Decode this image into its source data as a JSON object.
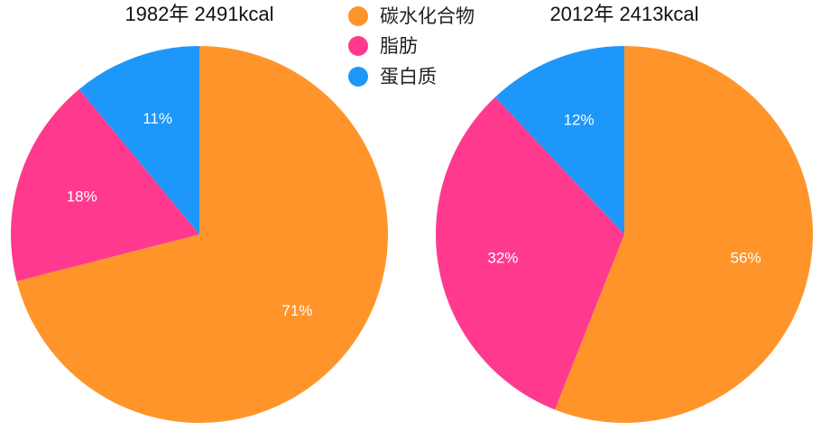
{
  "legend": {
    "items": [
      {
        "label": "碳水化合物",
        "color": "#FF952A"
      },
      {
        "label": "脂肪",
        "color": "#FF3A8E"
      },
      {
        "label": "蛋白质",
        "color": "#1E97FA"
      }
    ]
  },
  "chart_data": [
    {
      "type": "pie",
      "title": "1982年 2491kcal",
      "slices": [
        {
          "label": "碳水化合物",
          "value": 71,
          "display": "71%",
          "color": "#FF952A"
        },
        {
          "label": "脂肪",
          "value": 18,
          "display": "18%",
          "color": "#FF3A8E"
        },
        {
          "label": "蛋白质",
          "value": 11,
          "display": "11%",
          "color": "#1E97FA"
        }
      ],
      "start_angle": "12 o'clock",
      "direction": "clockwise"
    },
    {
      "type": "pie",
      "title": "2012年 2413kcal",
      "slices": [
        {
          "label": "碳水化合物",
          "value": 56,
          "display": "56%",
          "color": "#FF952A"
        },
        {
          "label": "脂肪",
          "value": 32,
          "display": "32%",
          "color": "#FF3A8E"
        },
        {
          "label": "蛋白质",
          "value": 12,
          "display": "12%",
          "color": "#1E97FA"
        }
      ],
      "start_angle": "12 o'clock",
      "direction": "clockwise"
    }
  ]
}
